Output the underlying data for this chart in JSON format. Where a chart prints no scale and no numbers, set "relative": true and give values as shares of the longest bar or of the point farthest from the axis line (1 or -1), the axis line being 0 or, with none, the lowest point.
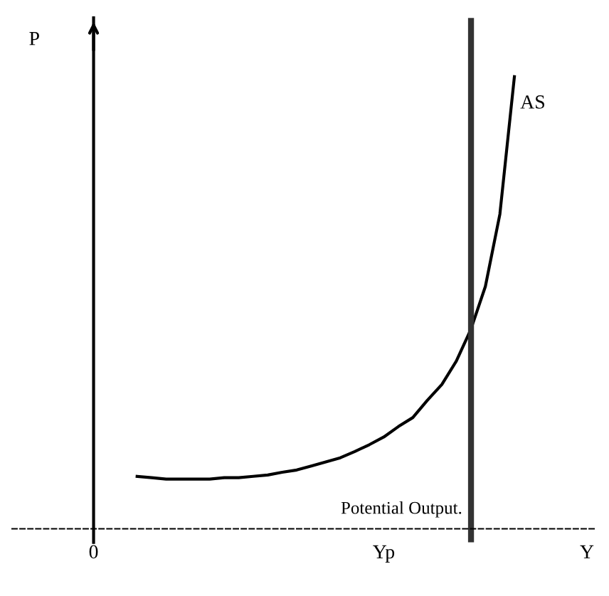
{
  "chart_data": {
    "type": "line",
    "relative": true,
    "ylabel": "P",
    "categories": [
      "0",
      null,
      null,
      null,
      null,
      null,
      null,
      null,
      null,
      null,
      null,
      null,
      null,
      null,
      null,
      null,
      null,
      null,
      null,
      null,
      "Yp",
      null,
      null,
      null,
      null,
      null,
      null,
      null,
      null,
      null,
      null,
      null,
      null,
      null,
      "Y"
    ],
    "series": [
      {
        "name": "AS",
        "color": "#000000",
        "values": [
          null,
          null,
          null,
          0.116,
          0.113,
          0.11,
          0.11,
          0.11,
          0.11,
          0.113,
          0.113,
          0.116,
          0.119,
          0.125,
          0.13,
          0.139,
          0.148,
          0.157,
          0.171,
          0.186,
          0.203,
          0.226,
          0.246,
          0.284,
          0.319,
          0.371,
          0.441,
          0.536,
          0.696,
          1.0,
          null,
          null,
          null,
          null,
          null
        ]
      }
    ],
    "annotations": [
      "Potential Output."
    ],
    "grid": false,
    "legend": false,
    "marker": "none",
    "line_style": "solid"
  }
}
